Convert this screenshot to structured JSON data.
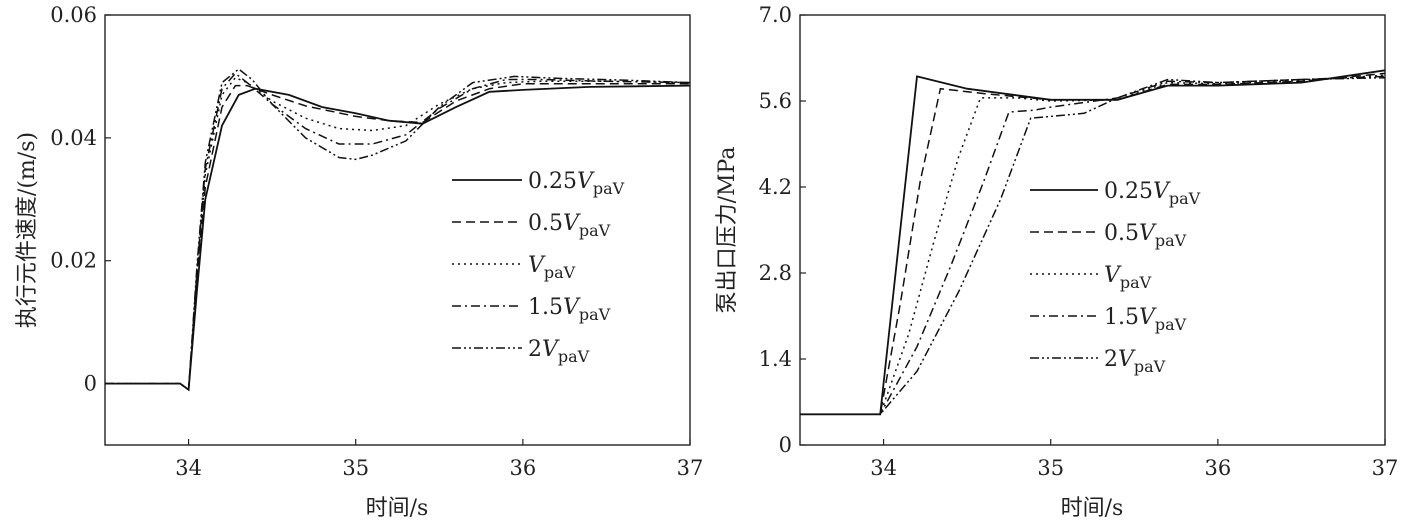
{
  "chart_data": [
    {
      "type": "line",
      "xlabel": "时间/s",
      "ylabel": "执行元件速度/(m/s)",
      "xlim": [
        33.5,
        37
      ],
      "ylim": [
        -0.01,
        0.06
      ],
      "xticks": [
        34,
        35,
        36,
        37
      ],
      "yticks": [
        0,
        0.02,
        0.04,
        0.06
      ],
      "xtick_labels": [
        "34",
        "35",
        "36",
        "37"
      ],
      "ytick_labels": [
        "0",
        "0.02",
        "0.04",
        "0.06"
      ],
      "grid": false,
      "legend_position": "center-right",
      "series": [
        {
          "name": "0.25VpaV",
          "coef": "0.25",
          "style": "solid",
          "x": [
            33.5,
            33.95,
            34.0,
            34.05,
            34.1,
            34.2,
            34.3,
            34.4,
            34.6,
            34.8,
            35.0,
            35.2,
            35.4,
            35.6,
            35.8,
            36.0,
            36.4,
            37.0
          ],
          "y": [
            0,
            0,
            -0.001,
            0.015,
            0.03,
            0.042,
            0.047,
            0.048,
            0.047,
            0.045,
            0.044,
            0.0428,
            0.0423,
            0.045,
            0.0475,
            0.0478,
            0.0483,
            0.0485
          ]
        },
        {
          "name": "0.5VpaV",
          "coef": "0.5",
          "style": "dashed",
          "x": [
            33.5,
            33.95,
            34.0,
            34.05,
            34.1,
            34.2,
            34.28,
            34.35,
            34.5,
            34.7,
            35.0,
            35.2,
            35.4,
            35.6,
            35.8,
            36.0,
            36.4,
            37.0
          ],
          "y": [
            0,
            0,
            -0.001,
            0.017,
            0.032,
            0.045,
            0.0485,
            0.0485,
            0.047,
            0.0452,
            0.0435,
            0.0428,
            0.0425,
            0.046,
            0.048,
            0.0488,
            0.0488,
            0.0488
          ]
        },
        {
          "name": "VpaV",
          "coef": "",
          "style": "dotted",
          "x": [
            33.5,
            33.95,
            34.0,
            34.05,
            34.1,
            34.2,
            34.28,
            34.35,
            34.5,
            34.7,
            34.9,
            35.1,
            35.3,
            35.5,
            35.7,
            35.9,
            36.1,
            36.5,
            37.0
          ],
          "y": [
            0,
            0,
            -0.001,
            0.018,
            0.034,
            0.047,
            0.0498,
            0.049,
            0.046,
            0.0432,
            0.0415,
            0.0412,
            0.042,
            0.0455,
            0.048,
            0.049,
            0.0492,
            0.0492,
            0.049
          ]
        },
        {
          "name": "1.5VpaV",
          "coef": "1.5",
          "style": "dashdot",
          "x": [
            33.5,
            33.95,
            34.0,
            34.05,
            34.1,
            34.2,
            34.28,
            34.35,
            34.5,
            34.7,
            34.9,
            35.1,
            35.3,
            35.5,
            35.7,
            35.9,
            36.1,
            36.5,
            37.0
          ],
          "y": [
            0,
            0,
            -0.001,
            0.018,
            0.035,
            0.048,
            0.0505,
            0.049,
            0.0455,
            0.0415,
            0.039,
            0.039,
            0.0405,
            0.0448,
            0.048,
            0.0495,
            0.0495,
            0.0492,
            0.049
          ]
        },
        {
          "name": "2VpaV",
          "coef": "2",
          "style": "dashdotdot",
          "x": [
            33.5,
            33.95,
            34.0,
            34.05,
            34.1,
            34.2,
            34.3,
            34.38,
            34.5,
            34.7,
            34.9,
            35.0,
            35.1,
            35.3,
            35.5,
            35.7,
            35.95,
            36.2,
            36.6,
            37.0
          ],
          "y": [
            0,
            0,
            -0.001,
            0.019,
            0.036,
            0.049,
            0.0512,
            0.0495,
            0.0455,
            0.04,
            0.0368,
            0.0365,
            0.0372,
            0.0395,
            0.045,
            0.049,
            0.05,
            0.0497,
            0.0494,
            0.049
          ]
        }
      ]
    },
    {
      "type": "line",
      "xlabel": "时间/s",
      "ylabel": "泵出口压力/MPa",
      "xlim": [
        33.5,
        37
      ],
      "ylim": [
        0,
        7.0
      ],
      "xticks": [
        34,
        35,
        36,
        37
      ],
      "yticks": [
        0,
        1.4,
        2.8,
        4.2,
        5.6,
        7.0
      ],
      "xtick_labels": [
        "34",
        "35",
        "36",
        "37"
      ],
      "ytick_labels": [
        "0",
        "1.4",
        "2.8",
        "4.2",
        "5.6",
        "7.0"
      ],
      "grid": false,
      "legend_position": "center-right",
      "series": [
        {
          "name": "0.25VpaV",
          "coef": "0.25",
          "style": "solid",
          "x": [
            33.5,
            33.98,
            34.2,
            34.5,
            35.0,
            35.4,
            35.7,
            36.0,
            36.5,
            37.0
          ],
          "y": [
            0.5,
            0.5,
            6.0,
            5.8,
            5.62,
            5.62,
            5.85,
            5.85,
            5.9,
            6.1
          ]
        },
        {
          "name": "0.5VpaV",
          "coef": "0.5",
          "style": "dashed",
          "x": [
            33.5,
            33.98,
            34.1,
            34.22,
            34.34,
            34.6,
            35.0,
            35.4,
            35.7,
            36.0,
            36.5,
            37.0
          ],
          "y": [
            0.5,
            0.5,
            2.3,
            4.3,
            5.8,
            5.72,
            5.62,
            5.62,
            5.87,
            5.87,
            5.92,
            6.05
          ]
        },
        {
          "name": "VpaV",
          "coef": "",
          "style": "dotted",
          "x": [
            33.5,
            33.98,
            34.15,
            34.3,
            34.45,
            34.58,
            34.8,
            35.0,
            35.4,
            35.7,
            36.0,
            36.5,
            37.0
          ],
          "y": [
            0.5,
            0.5,
            1.8,
            3.3,
            4.7,
            5.65,
            5.65,
            5.6,
            5.62,
            5.9,
            5.88,
            5.93,
            6.02
          ]
        },
        {
          "name": "1.5VpaV",
          "coef": "1.5",
          "style": "dashdot",
          "x": [
            33.5,
            33.98,
            34.2,
            34.4,
            34.6,
            34.75,
            34.9,
            35.0,
            35.4,
            35.7,
            36.0,
            36.5,
            37.0
          ],
          "y": [
            0.5,
            0.5,
            1.6,
            2.9,
            4.3,
            5.42,
            5.45,
            5.5,
            5.65,
            5.92,
            5.9,
            5.95,
            6.0
          ]
        },
        {
          "name": "2VpaV",
          "coef": "2",
          "style": "dashdotdot",
          "x": [
            33.5,
            33.98,
            34.2,
            34.45,
            34.7,
            34.88,
            35.0,
            35.2,
            35.4,
            35.7,
            36.0,
            36.5,
            37.0
          ],
          "y": [
            0.5,
            0.5,
            1.2,
            2.5,
            4.0,
            5.32,
            5.35,
            5.4,
            5.65,
            5.95,
            5.9,
            5.95,
            5.98
          ]
        }
      ]
    }
  ],
  "legend": {
    "V_symbol": "V",
    "subscript": "paV"
  }
}
